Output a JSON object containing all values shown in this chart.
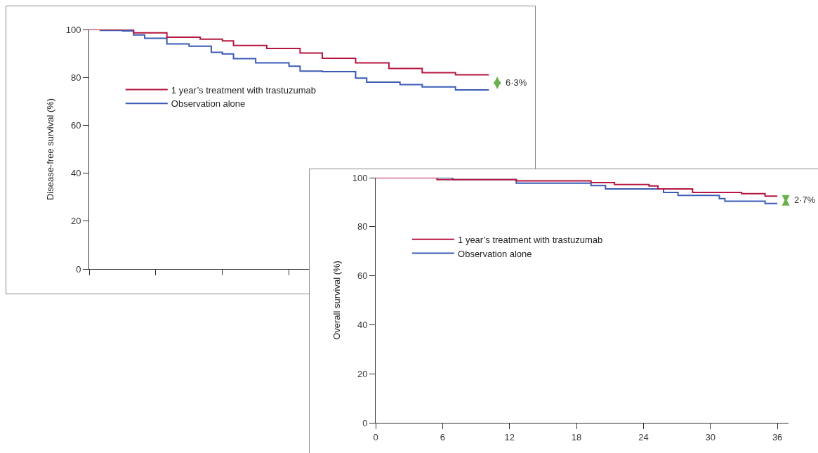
{
  "chart_data": [
    {
      "type": "step",
      "ylabel": "Disease-free survival (%)",
      "categories": [
        null,
        null,
        null,
        null,
        null,
        null,
        null,
        null,
        null,
        null,
        null,
        null,
        null,
        null,
        null,
        null,
        null,
        null,
        null,
        null,
        null,
        null,
        null,
        null,
        null,
        null,
        null,
        null,
        null,
        null,
        null,
        null,
        null,
        null,
        null,
        null,
        null
      ],
      "ylim": [
        0,
        100
      ],
      "yticks": [
        0,
        20,
        40,
        60,
        80,
        100
      ],
      "grid": false,
      "legend": "center left",
      "marker": "none",
      "line_style": "solid",
      "annotations": [
        "6·3%"
      ],
      "series": [
        {
          "name": "1 year’s treatment with trastuzumab",
          "color": "#b5173f",
          "values": [
            100,
            100,
            100,
            100,
            98.6,
            98.6,
            98.6,
            96.8,
            96.8,
            96.8,
            96.0,
            96.0,
            95.2,
            93.3,
            93.3,
            93.3,
            92.1,
            92.1,
            92.1,
            90.2,
            90.2,
            88.0,
            88.0,
            88.0,
            86.1,
            86.1,
            86.1,
            83.7,
            83.7,
            83.7,
            82.0,
            82.0,
            82.0,
            81.1,
            81.1,
            81.1,
            81.1
          ]
        },
        {
          "name": "Observation alone",
          "color": "#3a5bb5",
          "values": [
            100,
            99.6,
            99.6,
            99.4,
            97.7,
            96.3,
            96.3,
            94.0,
            94.0,
            93.0,
            93.0,
            90.5,
            89.8,
            87.8,
            87.8,
            86.1,
            86.1,
            86.1,
            84.7,
            82.6,
            82.6,
            82.4,
            82.4,
            82.4,
            79.7,
            78.0,
            78.0,
            78.0,
            77.0,
            77.0,
            76.0,
            76.0,
            76.0,
            74.8,
            74.8,
            74.8,
            74.8
          ]
        }
      ]
    },
    {
      "type": "step",
      "ylabel": "Overall survival (%)",
      "xlim": [
        0,
        37
      ],
      "ylim": [
        0,
        100
      ],
      "yticks": [
        0,
        20,
        40,
        60,
        80,
        100
      ],
      "xticks": [
        0,
        6,
        12,
        18,
        24,
        30,
        36
      ],
      "grid": false,
      "legend": "center left",
      "marker": "none",
      "line_style": "solid",
      "annotations": [
        "2·7%"
      ],
      "series": [
        {
          "name": "1 year’s treatment with trastuzumab",
          "color": "#b5173f",
          "x": [
            0,
            5.5,
            12.6,
            19.3,
            21.4,
            24.5,
            25.3,
            28.4,
            32.8,
            34.9,
            36
          ],
          "values": [
            100,
            99.2,
            98.7,
            98.0,
            97.2,
            96.6,
            95.4,
            94.0,
            93.5,
            92.5,
            92.5
          ]
        },
        {
          "name": "Observation alone",
          "color": "#3a5bb5",
          "x": [
            0,
            6.9,
            12.6,
            19.3,
            20.6,
            25.8,
            27.1,
            30.8,
            31.3,
            34.9,
            36
          ],
          "values": [
            100,
            99.2,
            97.8,
            96.8,
            95.4,
            94.0,
            92.8,
            91.5,
            90.4,
            89.5,
            89.5
          ]
        }
      ]
    }
  ]
}
